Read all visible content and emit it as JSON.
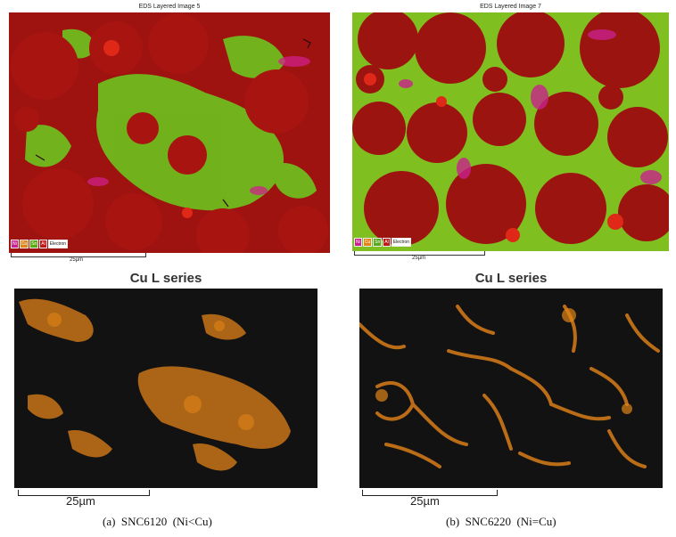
{
  "panels": [
    {
      "eds_title": "EDS Layered Image 5",
      "legend": [
        "Ni",
        "Cu",
        "Sn",
        "Al",
        "Electron"
      ],
      "eds_scale": "25µm",
      "map_title": "Cu L series",
      "map_scale": "25µm",
      "caption": "(a)  SNC6120  (Ni<Cu)"
    },
    {
      "eds_title": "EDS Layered Image 7",
      "legend": [
        "Ni",
        "Cu",
        "Sn",
        "Al",
        "Electron"
      ],
      "eds_scale": "25µm",
      "map_title": "Cu L series",
      "map_scale": "25µm",
      "caption": "(b)  SNC6220  (Ni=Cu)"
    }
  ],
  "colors": {
    "al_matrix": "#a01010",
    "sn_phase": "#7cc61c",
    "ni_phase": "#c8208c",
    "cu_signal": "#e08418",
    "map_background": "#121212"
  }
}
